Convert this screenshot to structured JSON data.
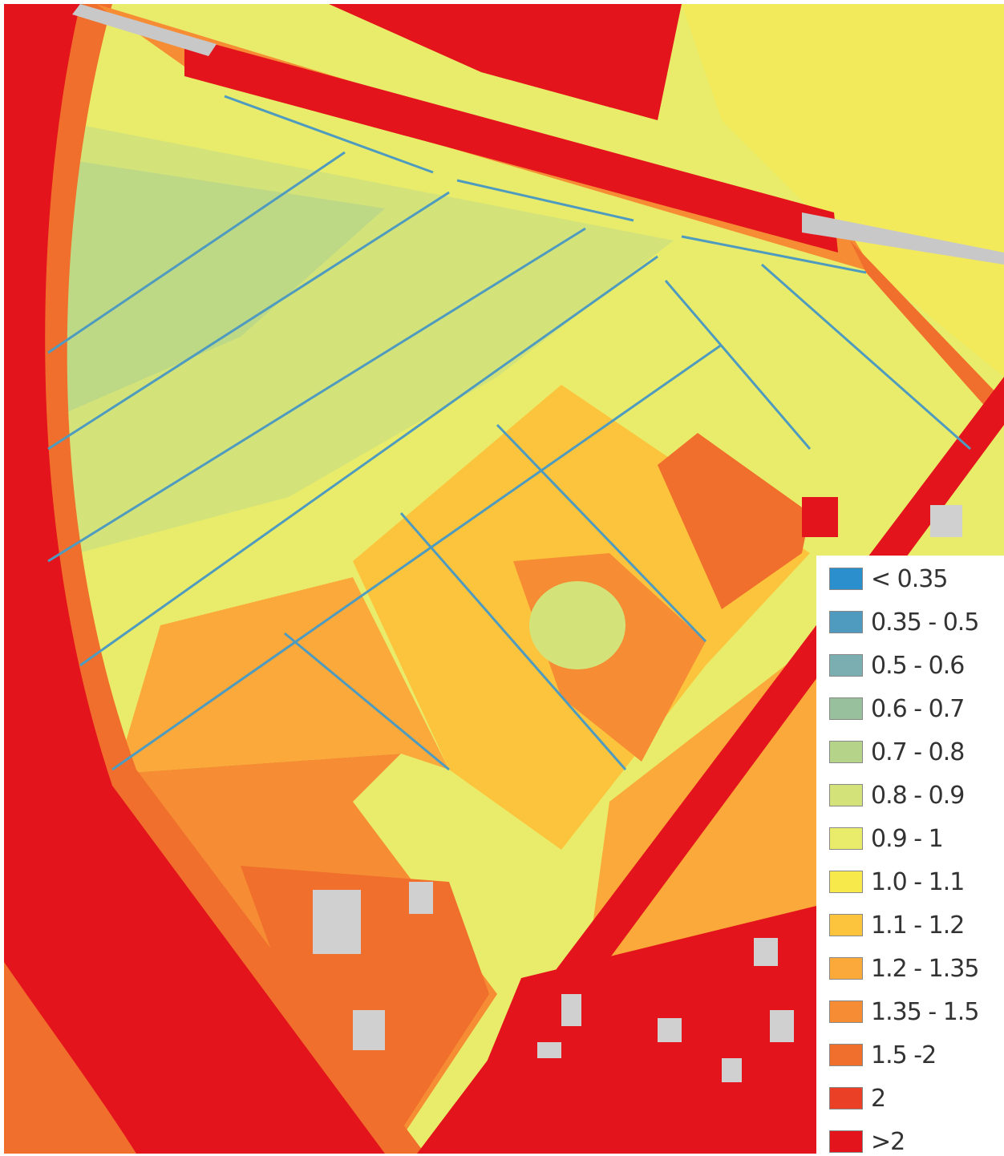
{
  "legend": {
    "items": [
      {
        "label": "< 0.35",
        "color": "#2b8fce"
      },
      {
        "label": "0.35 - 0.5",
        "color": "#4f9bbf"
      },
      {
        "label": "0.5 - 0.6",
        "color": "#7aaeb0"
      },
      {
        "label": "0.6 - 0.7",
        "color": "#98c09c"
      },
      {
        "label": "0.7 - 0.8",
        "color": "#b5d48a"
      },
      {
        "label": "0.8 - 0.9",
        "color": "#d3e37a"
      },
      {
        "label": "0.9 - 1",
        "color": "#e9ec6a"
      },
      {
        "label": "1.0 - 1.1",
        "color": "#f7e84c"
      },
      {
        "label": "1.1 - 1.2",
        "color": "#fcc43c"
      },
      {
        "label": "1.2 - 1.35",
        "color": "#faa93a"
      },
      {
        "label": "1.35 - 1.5",
        "color": "#f68c33"
      },
      {
        "label": "1.5 -2",
        "color": "#f06f2c"
      },
      {
        "label": "2",
        "color": "#ea4126"
      },
      {
        "label": ">2",
        "color": "#e3141b"
      }
    ]
  }
}
